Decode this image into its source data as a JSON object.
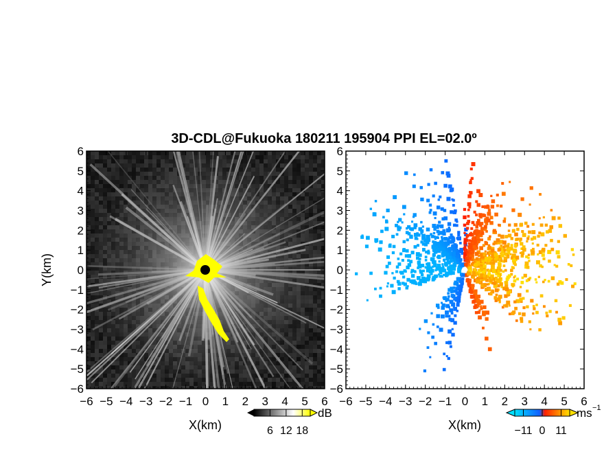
{
  "chart_data": [
    {
      "type": "heatmap",
      "title": "3D-CDL@Fukuoka 180211 195904 PPI EL=02.0º",
      "xlabel": "X(km)",
      "ylabel": "Y(km)",
      "xlim": [
        -6,
        6
      ],
      "ylim": [
        -6,
        6
      ],
      "xticks": [
        "−6",
        "−5",
        "−4",
        "−3",
        "−2",
        "−1",
        "0",
        "1",
        "2",
        "3",
        "4",
        "5",
        "6"
      ],
      "yticks": [
        "6",
        "5",
        "4",
        "3",
        "2",
        "1",
        "0",
        "−1",
        "−2",
        "−3",
        "−4",
        "−5",
        "−6"
      ],
      "grid": false,
      "quantity": "signal intensity",
      "colorbar": {
        "unit": "dB",
        "ticks": [
          "6",
          "12",
          "18"
        ],
        "tick_values": [
          6,
          12,
          18
        ],
        "range": [
          0,
          21
        ],
        "colors": [
          "#000000",
          "#ffffff",
          "#ffff00"
        ]
      },
      "background_color": "#111111",
      "highlight_color": "#ffff00"
    },
    {
      "type": "heatmap",
      "xlabel": "X(km)",
      "xlim": [
        -6,
        6
      ],
      "ylim": [
        -6,
        6
      ],
      "xticks": [
        "−6",
        "−5",
        "−4",
        "−3",
        "−2",
        "−1",
        "0",
        "1",
        "2",
        "3",
        "4",
        "5",
        "6"
      ],
      "yticks": [
        "6",
        "5",
        "4",
        "3",
        "2",
        "1",
        "0",
        "−1",
        "−2",
        "−3",
        "−4",
        "−5",
        "−6"
      ],
      "grid": false,
      "quantity": "radial velocity",
      "colorbar": {
        "unit": "ms",
        "unit_exponent": "−1",
        "ticks": [
          "−11",
          "0",
          "11"
        ],
        "tick_values": [
          -11,
          0,
          11
        ],
        "range": [
          -16,
          16
        ],
        "colors": [
          "#00e0ff",
          "#1060ff",
          "#ff2000",
          "#ffe000"
        ]
      },
      "background_color": "#ffffff"
    }
  ]
}
